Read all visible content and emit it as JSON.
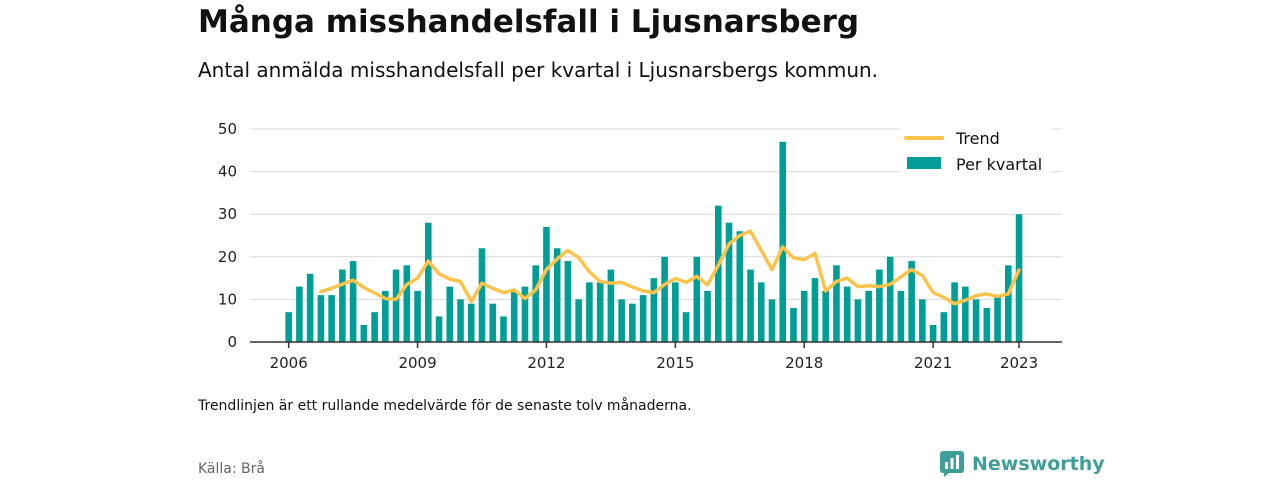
{
  "header": {
    "title": "Många misshandelsfall i Ljusnarsberg",
    "subtitle": "Antal anmälda misshandelsfall per kvartal i Ljusnarsbergs kommun."
  },
  "footer": {
    "note": "Trendlinjen är ett rullande medelvärde för de senaste tolv månaderna.",
    "source": "Källa: Brå",
    "brand": "Newsworthy"
  },
  "chart_data": {
    "type": "bar",
    "x_start": 2006.0,
    "x_step": 0.25,
    "xlim": [
      2005.1,
      2024.0
    ],
    "ylim": [
      0,
      50
    ],
    "y_ticks": [
      0,
      10,
      20,
      30,
      40,
      50
    ],
    "x_ticks": [
      2006,
      2009,
      2012,
      2015,
      2018,
      2021,
      2023
    ],
    "grid": true,
    "legend_position": "top-right",
    "colors": {
      "bar": "#009e96",
      "trend": "#fbc34a",
      "grid": "#d9d9d9",
      "axis": "#333333"
    },
    "series": [
      {
        "name": "Per kvartal",
        "kind": "bar",
        "values": [
          7,
          13,
          16,
          11,
          11,
          17,
          19,
          4,
          7,
          12,
          17,
          18,
          12,
          28,
          6,
          13,
          10,
          9,
          22,
          9,
          6,
          12,
          13,
          18,
          27,
          22,
          19,
          10,
          14,
          14,
          17,
          10,
          9,
          11,
          15,
          20,
          14,
          7,
          20,
          12,
          32,
          28,
          26,
          17,
          14,
          10,
          47,
          8,
          12,
          15,
          12,
          18,
          13,
          10,
          12,
          17,
          20,
          12,
          19,
          10,
          4,
          7,
          14,
          13,
          10,
          8,
          11,
          18,
          30
        ]
      },
      {
        "name": "Trend",
        "kind": "line",
        "start_index": 3,
        "values": [
          11.8,
          12.6,
          13.6,
          14.5,
          12.8,
          11.5,
          10.2,
          10.0,
          13.5,
          15.0,
          19.0,
          16.0,
          14.8,
          14.2,
          9.5,
          13.8,
          12.6,
          11.6,
          12.2,
          10.2,
          12.2,
          17.0,
          19.5,
          21.5,
          19.8,
          16.5,
          14.2,
          13.8,
          14.0,
          12.9,
          12.0,
          11.6,
          13.5,
          14.9,
          14.0,
          15.4,
          13.4,
          18.0,
          23.0,
          25.0,
          26.0,
          21.5,
          17.0,
          22.3,
          19.8,
          19.3,
          20.8,
          12.0,
          14.2,
          15.0,
          13.0,
          13.2,
          13.0,
          13.5,
          15.3,
          17.0,
          15.6,
          11.6,
          10.5,
          9.0,
          9.8,
          10.9,
          11.3,
          10.7,
          11.3,
          16.9
        ]
      }
    ]
  }
}
